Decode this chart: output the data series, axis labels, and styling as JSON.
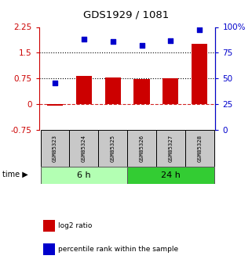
{
  "title": "GDS1929 / 1081",
  "samples": [
    "GSM85323",
    "GSM85324",
    "GSM85325",
    "GSM85326",
    "GSM85327",
    "GSM85328"
  ],
  "log2_ratio": [
    -0.03,
    0.82,
    0.78,
    0.73,
    0.75,
    1.75
  ],
  "percentile_rank": [
    46,
    88,
    86,
    82,
    87,
    97
  ],
  "groups": [
    {
      "label": "6 h",
      "indices": [
        0,
        1,
        2
      ],
      "color": "#b3ffb3"
    },
    {
      "label": "24 h",
      "indices": [
        3,
        4,
        5
      ],
      "color": "#33cc33"
    }
  ],
  "bar_color": "#cc0000",
  "dot_color": "#0000cc",
  "left_yticks": [
    -0.75,
    0,
    0.75,
    1.5,
    2.25
  ],
  "right_yticks": [
    0,
    25,
    50,
    75,
    100
  ],
  "right_yticklabels": [
    "0",
    "25",
    "50",
    "75",
    "100%"
  ],
  "ylim_left": [
    -0.75,
    2.25
  ],
  "ylim_right": [
    0,
    100
  ],
  "hline_50": 0.75,
  "hline_75": 1.5,
  "cell_color": "#c8c8c8",
  "background_color": "#ffffff",
  "legend_items": [
    {
      "label": "log2 ratio",
      "color": "#cc0000"
    },
    {
      "label": "percentile rank within the sample",
      "color": "#0000cc"
    }
  ]
}
